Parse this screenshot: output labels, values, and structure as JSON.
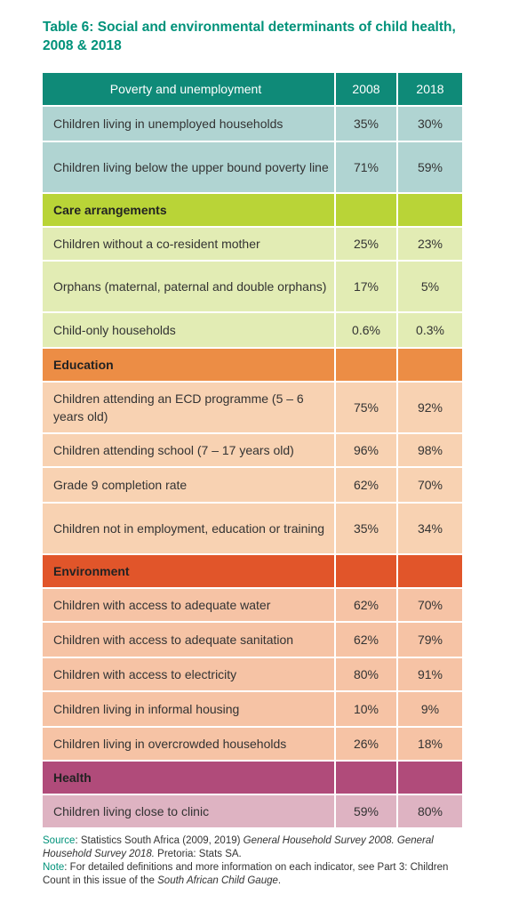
{
  "title": "Table 6: Social and environmental determinants of child health, 2008 & 2018",
  "header": {
    "label": "Poverty and unemployment",
    "col1": "2008",
    "col2": "2018",
    "color": "#0f8a78"
  },
  "sections": [
    {
      "id": "poverty",
      "label": null,
      "header_color": "#0f8a78",
      "row_color": "#b0d4d2",
      "rows": [
        {
          "label": "Children living in unemployed households",
          "v2008": "35%",
          "v2018": "30%"
        },
        {
          "label": "Children living below the upper bound poverty line",
          "v2008": "71%",
          "v2018": "59%"
        }
      ]
    },
    {
      "id": "care",
      "label": "Care arrangements",
      "header_color": "#b9d437",
      "row_color": "#e2ecb4",
      "rows": [
        {
          "label": "Children without a co-resident mother",
          "v2008": "25%",
          "v2018": "23%"
        },
        {
          "label": "Orphans (maternal, paternal and double orphans)",
          "v2008": "17%",
          "v2018": "5%"
        },
        {
          "label": "Child-only households",
          "v2008": "0.6%",
          "v2018": "0.3%"
        }
      ]
    },
    {
      "id": "education",
      "label": "Education",
      "header_color": "#ec8d45",
      "row_color": "#f8d2b2",
      "rows": [
        {
          "label": "Children attending an ECD programme (5 – 6 years old)",
          "v2008": "75%",
          "v2018": "92%"
        },
        {
          "label": "Children attending school (7 – 17 years old)",
          "v2008": "96%",
          "v2018": "98%"
        },
        {
          "label": "Grade 9 completion rate",
          "v2008": "62%",
          "v2018": "70%"
        },
        {
          "label": "Children not in employment, education or training",
          "v2008": "35%",
          "v2018": "34%"
        }
      ]
    },
    {
      "id": "environment",
      "label": "Environment",
      "header_color": "#e1552a",
      "row_color": "#f6c3a5",
      "rows": [
        {
          "label": "Children with access to adequate water",
          "v2008": "62%",
          "v2018": "70%"
        },
        {
          "label": "Children with access to adequate sanitation",
          "v2008": "62%",
          "v2018": "79%"
        },
        {
          "label": "Children with access to electricity",
          "v2008": "80%",
          "v2018": "91%"
        },
        {
          "label": "Children living in informal housing",
          "v2008": "10%",
          "v2018": "9%"
        },
        {
          "label": "Children living in overcrowded households",
          "v2008": "26%",
          "v2018": "18%"
        }
      ]
    },
    {
      "id": "health",
      "label": "Health",
      "header_color": "#b04b7a",
      "row_color": "#deb3c2",
      "rows": [
        {
          "label": "Children living close to clinic",
          "v2008": "59%",
          "v2018": "80%"
        }
      ]
    }
  ],
  "source": {
    "line1_label": "Source",
    "line1_text": ": Statistics South Africa (2009, 2019) ",
    "line1_italic": "General Household Survey 2008. General Household Survey 2018.",
    "line1_tail": " Pretoria: Stats SA.",
    "line2_label": "Note",
    "line2_text": ": For detailed definitions and more information on each indicator, see Part 3: Children Count in this issue of the ",
    "line2_italic": "South African Child Gauge",
    "line2_tail": "."
  },
  "colors": {
    "title": "#00927a"
  }
}
